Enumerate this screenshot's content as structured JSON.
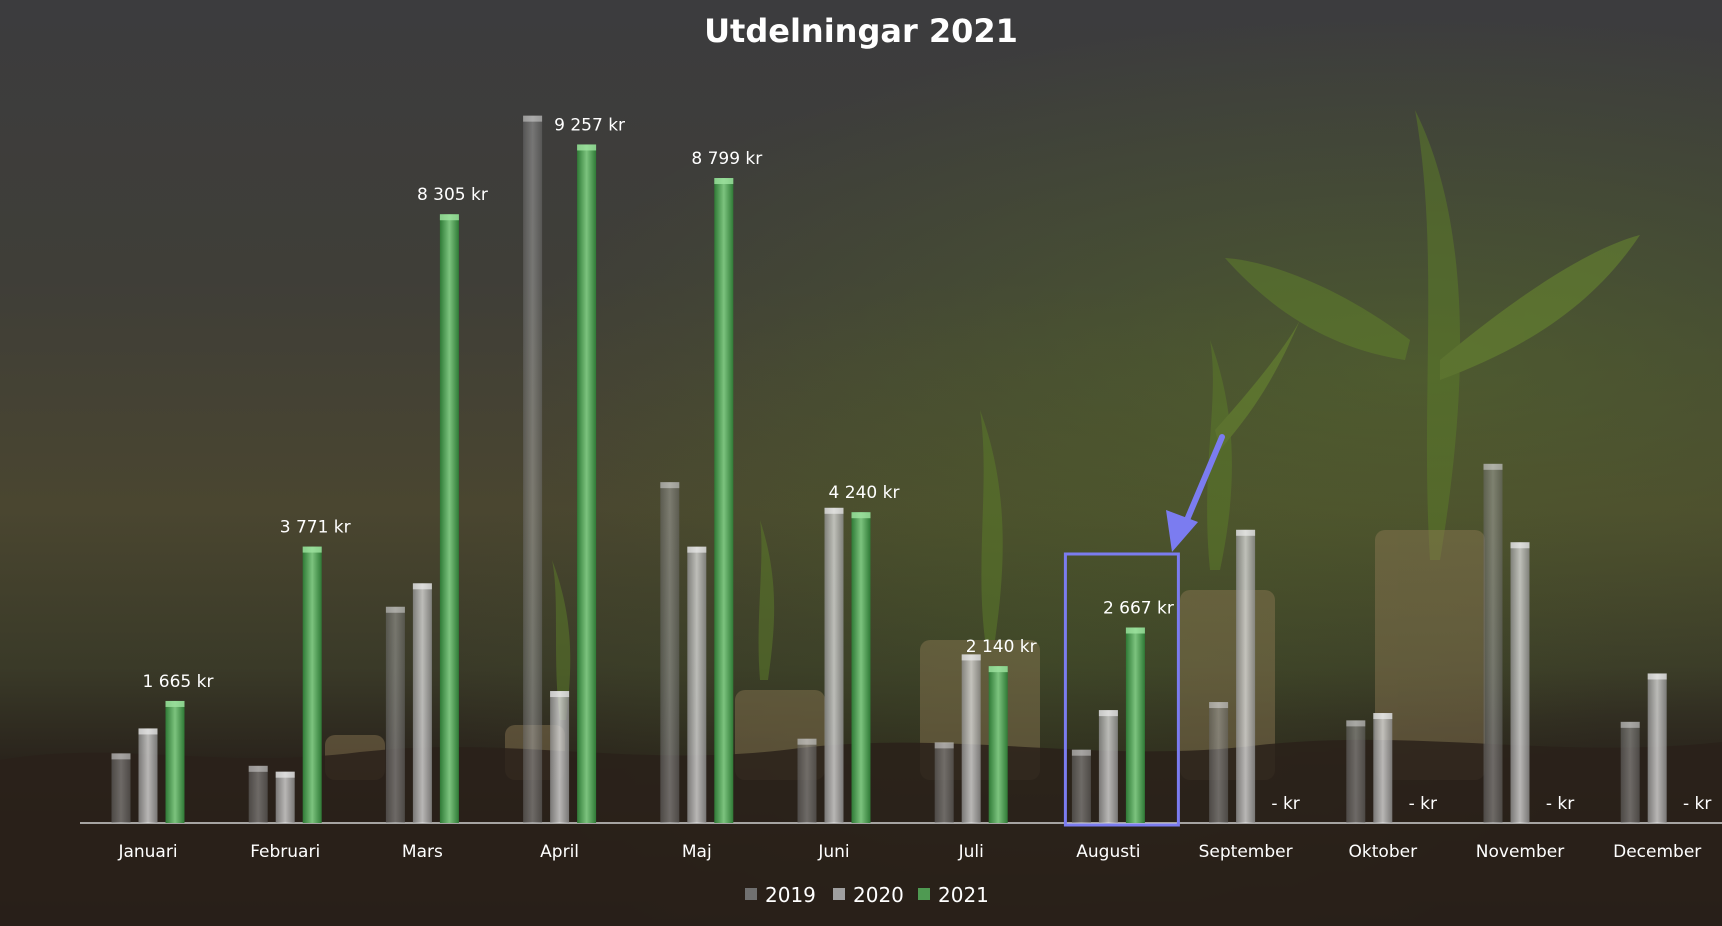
{
  "chart_data": {
    "type": "bar",
    "title": "Utdelningar 2021",
    "categories": [
      "Januari",
      "Februari",
      "Mars",
      "April",
      "Maj",
      "Juni",
      "Juli",
      "Augusti",
      "September",
      "Oktober",
      "November",
      "December"
    ],
    "series": [
      {
        "name": "2019",
        "values": [
          950,
          780,
          2950,
          9650,
          4650,
          1150,
          1100,
          1000,
          1650,
          1400,
          4900,
          1380
        ]
      },
      {
        "name": "2020",
        "values": [
          1290,
          700,
          3270,
          1800,
          3770,
          4300,
          2300,
          1540,
          4000,
          1500,
          3830,
          2040
        ]
      },
      {
        "name": "2021",
        "values": [
          1665,
          3771,
          8305,
          9257,
          8799,
          4240,
          2140,
          2667,
          null,
          null,
          null,
          null
        ]
      }
    ],
    "data_labels": [
      "1 665 kr",
      "3 771 kr",
      "8 305 kr",
      "9 257 kr",
      "8 799 kr",
      "4 240 kr",
      "2 140 kr",
      "2 667 kr",
      "-  kr",
      "-  kr",
      "-  kr",
      "-  kr"
    ],
    "ylim": [
      0,
      10000
    ],
    "grid": false,
    "legend": "bottom-center",
    "highlight": {
      "category": "Augusti"
    },
    "colors": {
      "2019": "#8a8a8a",
      "2020": "#b8b8b8",
      "2021": "#4f9a52",
      "highlight": "#7b7cf0"
    }
  }
}
